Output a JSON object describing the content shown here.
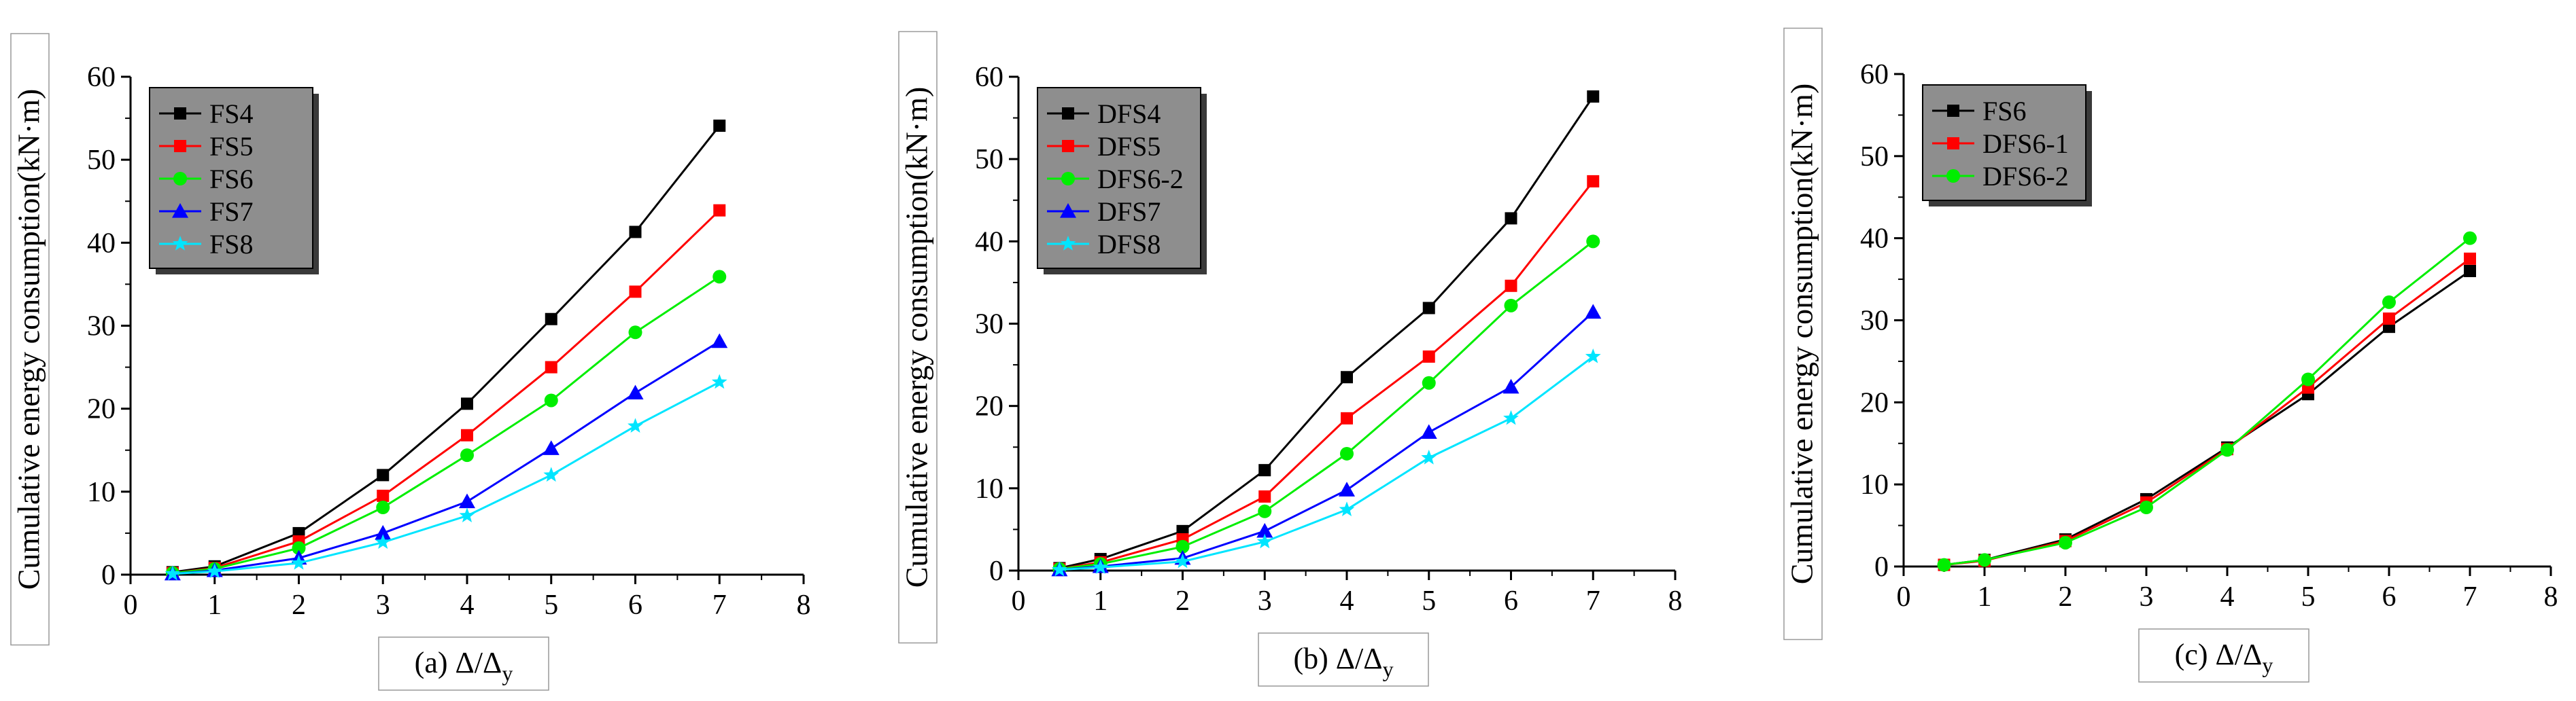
{
  "chart_data": [
    {
      "type": "line",
      "panel_caption": "(a) Δ/Δ",
      "caption_sub": "y",
      "ylabel": "Cumulative energy consumption(kN·m)",
      "xlim": [
        0,
        8
      ],
      "ylim": [
        0,
        60
      ],
      "xticks": [
        0,
        1,
        2,
        3,
        4,
        5,
        6,
        7,
        8
      ],
      "yticks": [
        0,
        10,
        20,
        30,
        40,
        50,
        60
      ],
      "legend_position": "top-left",
      "series": [
        {
          "name": "FS4",
          "color": "#000000",
          "marker": "square",
          "x": [
            0.5,
            1,
            2,
            3,
            4,
            5,
            6,
            7
          ],
          "y": [
            0.3,
            1.0,
            5.0,
            12.0,
            20.6,
            30.8,
            41.3,
            54.1
          ]
        },
        {
          "name": "FS5",
          "color": "#ff0000",
          "marker": "square",
          "x": [
            0.5,
            1,
            2,
            3,
            4,
            5,
            6,
            7
          ],
          "y": [
            0.2,
            0.8,
            4.0,
            9.5,
            16.8,
            25.0,
            34.1,
            43.9
          ]
        },
        {
          "name": "FS6",
          "color": "#00ee00",
          "marker": "circle",
          "x": [
            0.5,
            1,
            2,
            3,
            4,
            5,
            6,
            7
          ],
          "y": [
            0.2,
            0.7,
            3.2,
            8.1,
            14.4,
            21.0,
            29.2,
            35.9
          ]
        },
        {
          "name": "FS7",
          "color": "#0000ff",
          "marker": "triangle",
          "x": [
            0.5,
            1,
            2,
            3,
            4,
            5,
            6,
            7
          ],
          "y": [
            0.1,
            0.5,
            2.0,
            5.0,
            8.8,
            15.2,
            21.9,
            28.1
          ]
        },
        {
          "name": "FS8",
          "color": "#00e5ff",
          "marker": "star",
          "x": [
            0.5,
            1,
            2,
            3,
            4,
            5,
            6,
            7
          ],
          "y": [
            0.1,
            0.4,
            1.4,
            3.9,
            7.1,
            12.0,
            17.9,
            23.2
          ]
        }
      ]
    },
    {
      "type": "line",
      "panel_caption": "(b) Δ/Δ",
      "caption_sub": "y",
      "ylabel": "Cumulative energy consumption(kN·m)",
      "xlim": [
        0,
        8
      ],
      "ylim": [
        0,
        60
      ],
      "xticks": [
        0,
        1,
        2,
        3,
        4,
        5,
        6,
        7,
        8
      ],
      "yticks": [
        0,
        10,
        20,
        30,
        40,
        50,
        60
      ],
      "legend_position": "top-left",
      "series": [
        {
          "name": "DFS4",
          "color": "#000000",
          "marker": "square",
          "x": [
            0.5,
            1,
            2,
            3,
            4,
            5,
            6,
            7
          ],
          "y": [
            0.3,
            1.4,
            4.8,
            12.2,
            23.5,
            31.9,
            42.8,
            57.6
          ]
        },
        {
          "name": "DFS5",
          "color": "#ff0000",
          "marker": "square",
          "x": [
            0.5,
            1,
            2,
            3,
            4,
            5,
            6,
            7
          ],
          "y": [
            0.2,
            1.0,
            3.8,
            9.0,
            18.5,
            26.0,
            34.6,
            47.3
          ]
        },
        {
          "name": "DFS6-2",
          "color": "#00ee00",
          "marker": "circle",
          "x": [
            0.5,
            1,
            2,
            3,
            4,
            5,
            6,
            7
          ],
          "y": [
            0.2,
            0.8,
            2.9,
            7.2,
            14.2,
            22.8,
            32.2,
            40.0
          ]
        },
        {
          "name": "DFS7",
          "color": "#0000ff",
          "marker": "triangle",
          "x": [
            0.5,
            1,
            2,
            3,
            4,
            5,
            6,
            7
          ],
          "y": [
            0.1,
            0.5,
            1.5,
            4.8,
            9.8,
            16.8,
            22.3,
            31.4
          ]
        },
        {
          "name": "DFS8",
          "color": "#00e5ff",
          "marker": "star",
          "x": [
            0.5,
            1,
            2,
            3,
            4,
            5,
            6,
            7
          ],
          "y": [
            0.1,
            0.4,
            1.1,
            3.5,
            7.4,
            13.7,
            18.5,
            26.0
          ]
        }
      ]
    },
    {
      "type": "line",
      "panel_caption": "(c) Δ/Δ",
      "caption_sub": "y",
      "ylabel": "Cumulative energy consumption(kN·m)",
      "xlim": [
        0,
        8
      ],
      "ylim": [
        0,
        60
      ],
      "xticks": [
        0,
        1,
        2,
        3,
        4,
        5,
        6,
        7,
        8
      ],
      "yticks": [
        0,
        10,
        20,
        30,
        40,
        50,
        60
      ],
      "legend_position": "top-left",
      "series": [
        {
          "name": "FS6",
          "color": "#000000",
          "marker": "square",
          "x": [
            0.5,
            1,
            2,
            3,
            4,
            5,
            6,
            7
          ],
          "y": [
            0.2,
            0.8,
            3.3,
            8.2,
            14.5,
            21.0,
            29.2,
            36.0
          ]
        },
        {
          "name": "DFS6-1",
          "color": "#ff0000",
          "marker": "square",
          "x": [
            0.5,
            1,
            2,
            3,
            4,
            5,
            6,
            7
          ],
          "y": [
            0.2,
            0.7,
            3.1,
            7.8,
            14.3,
            21.8,
            30.2,
            37.5
          ]
        },
        {
          "name": "DFS6-2",
          "color": "#00ee00",
          "marker": "circle",
          "x": [
            0.5,
            1,
            2,
            3,
            4,
            5,
            6,
            7
          ],
          "y": [
            0.2,
            0.8,
            2.9,
            7.2,
            14.2,
            22.8,
            32.2,
            40.0
          ]
        }
      ]
    }
  ]
}
